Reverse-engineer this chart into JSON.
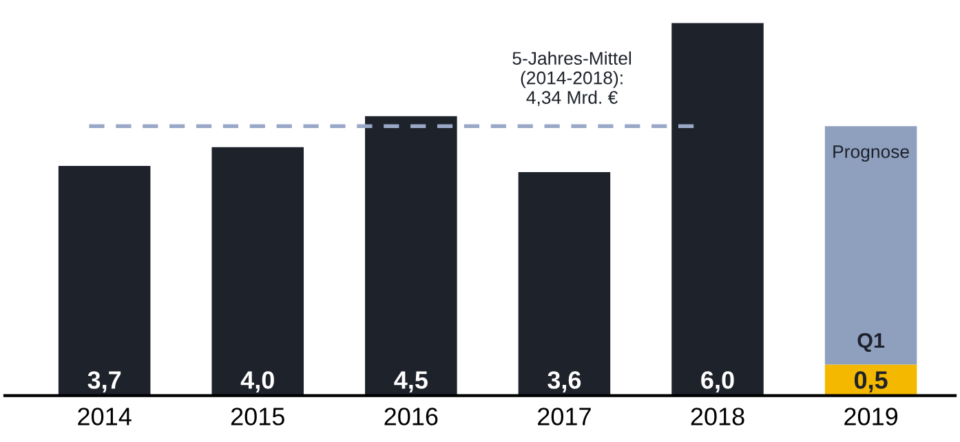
{
  "chart_data": {
    "type": "bar",
    "stacked": true,
    "categories": [
      "2014",
      "2015",
      "2016",
      "2017",
      "2018",
      "2019"
    ],
    "series": [
      {
        "color": "#1e222b",
        "values": [
          3.7,
          4.0,
          4.5,
          3.6,
          6.0,
          null
        ],
        "value_labels": [
          "3,7",
          "4,0",
          "4,5",
          "3,6",
          "6,0",
          null
        ]
      },
      {
        "name": "Q1",
        "color": "#f5b800",
        "values": [
          null,
          null,
          null,
          null,
          null,
          0.5
        ],
        "value_labels": [
          null,
          null,
          null,
          null,
          null,
          "0,5"
        ]
      },
      {
        "name": "Prognose",
        "color": "#8fa0bf",
        "values": [
          null,
          null,
          null,
          null,
          null,
          3.84
        ]
      }
    ],
    "ref_lines": [
      {
        "axis": "y",
        "value": 4.34,
        "label": "5-Jahres-Mittel\n(2014-2018):\n4,34 Mrd. €",
        "color": "#9aa8c8",
        "line_style": "dashed"
      }
    ],
    "grid": false,
    "legend": false
  }
}
